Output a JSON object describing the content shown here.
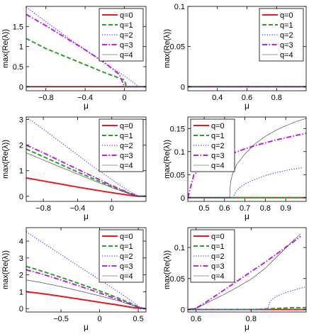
{
  "figure": {
    "legend_entries": [
      "q=0",
      "q=1",
      "q=2",
      "q=3",
      "q=4"
    ]
  },
  "styles": {
    "q=0": {
      "color": "#e41a1c",
      "dash": "",
      "width": 2.0
    },
    "q=1": {
      "color": "#2ca02c",
      "dash": "6,3",
      "width": 2.0
    },
    "q=2": {
      "color": "#3b3bff",
      "dash": "1.2,2.2",
      "width": 1.2
    },
    "q=3": {
      "color": "#c020e0",
      "dash": "7,2.5,1.5,2.5",
      "width": 2.0
    },
    "q=4": {
      "color": "#333333",
      "dash": "",
      "width": 0.6
    }
  },
  "chart_data": [
    {
      "type": "line",
      "title": "",
      "xlabel": "μ",
      "ylabel": "max(Re(λ))",
      "xlim": [
        -1.0,
        0.22
      ],
      "ylim": [
        -0.1,
        2.0
      ],
      "xticks": [
        -0.8,
        -0.4,
        0
      ],
      "xtick_labels": [
        "−0.8",
        "−0.4",
        "0"
      ],
      "yticks": [
        0,
        0.5,
        1,
        1.5
      ],
      "ytick_labels": [
        "0",
        "0.5",
        "1",
        "1.5"
      ],
      "grid": false,
      "legend": "top-right",
      "series": [
        {
          "name": "q=0",
          "x": [
            -1.0,
            0.22
          ],
          "y": [
            0.0,
            0.0
          ]
        },
        {
          "name": "q=1",
          "x": [
            -1.0,
            -0.8,
            -0.6,
            -0.4,
            -0.2,
            0.0,
            0.02,
            0.22
          ],
          "y": [
            1.2,
            0.95,
            0.75,
            0.55,
            0.35,
            0.17,
            0.0,
            0.0
          ]
        },
        {
          "name": "q=2",
          "x": [
            -1.0,
            -0.8,
            -0.6,
            -0.4,
            -0.2,
            0.0,
            0.15,
            0.22
          ],
          "y": [
            1.98,
            1.62,
            1.26,
            0.92,
            0.58,
            0.27,
            0.0,
            0.0
          ]
        },
        {
          "name": "q=3",
          "x": [
            -1.0,
            -0.8,
            -0.6,
            -0.4,
            -0.2,
            -0.05,
            0.0,
            0.22
          ],
          "y": [
            1.8,
            1.52,
            1.22,
            0.92,
            0.6,
            0.3,
            0.0,
            0.0
          ]
        },
        {
          "name": "q=4",
          "x": [
            -1.0,
            -0.6,
            -0.2,
            0.0,
            0.22
          ],
          "y": [
            0.0,
            0.0,
            0.0,
            0.0,
            0.0
          ]
        }
      ]
    },
    {
      "type": "line",
      "title": "",
      "xlabel": "μ",
      "ylabel": "max(Re(λ))",
      "xlim": [
        0.2,
        1.0
      ],
      "ylim": [
        -0.005,
        0.1
      ],
      "xticks": [
        0.4,
        0.6,
        0.8
      ],
      "xtick_labels": [
        "0.4",
        "0.6",
        "0.8"
      ],
      "yticks": [
        0,
        0.05,
        0.1
      ],
      "ytick_labels": [
        "0",
        "0.05",
        "0.1"
      ],
      "grid": false,
      "legend": "top-right",
      "series": [
        {
          "name": "q=0",
          "x": [
            0.2,
            1.0
          ],
          "y": [
            0.0,
            0.0
          ]
        },
        {
          "name": "q=1",
          "x": [
            0.2,
            1.0
          ],
          "y": [
            0.0,
            0.0
          ]
        },
        {
          "name": "q=2",
          "x": [
            0.2,
            1.0
          ],
          "y": [
            0.0,
            0.0
          ]
        },
        {
          "name": "q=3",
          "x": [
            0.2,
            1.0
          ],
          "y": [
            0.0,
            0.0
          ]
        },
        {
          "name": "q=4",
          "x": [
            0.2,
            1.0
          ],
          "y": [
            0.0,
            0.0
          ]
        }
      ]
    },
    {
      "type": "line",
      "title": "",
      "xlabel": "μ",
      "ylabel": "max(Re(λ))",
      "xlim": [
        -1.0,
        0.4
      ],
      "ylim": [
        -0.2,
        3.1
      ],
      "xticks": [
        -0.8,
        -0.4,
        0
      ],
      "xtick_labels": [
        "−0.8",
        "−0.4",
        "0"
      ],
      "yticks": [
        0,
        1,
        2,
        3
      ],
      "ytick_labels": [
        "0",
        "1",
        "2",
        "3"
      ],
      "grid": false,
      "legend": "top-right",
      "series": [
        {
          "name": "q=0",
          "x": [
            -1.0,
            -0.8,
            -0.6,
            -0.4,
            -0.2,
            0.0,
            0.2,
            0.3,
            0.4
          ],
          "y": [
            0.72,
            0.6,
            0.48,
            0.36,
            0.25,
            0.14,
            0.04,
            0.0,
            0.0
          ]
        },
        {
          "name": "q=1",
          "x": [
            -1.0,
            -0.8,
            -0.6,
            -0.4,
            -0.2,
            0.0,
            0.2,
            0.3,
            0.4
          ],
          "y": [
            1.85,
            1.55,
            1.25,
            0.95,
            0.66,
            0.38,
            0.12,
            0.0,
            0.0
          ]
        },
        {
          "name": "q=2",
          "x": [
            -1.0,
            -0.8,
            -0.6,
            -0.4,
            -0.2,
            0.0,
            0.2,
            0.32,
            0.4
          ],
          "y": [
            3.1,
            2.62,
            2.12,
            1.62,
            1.12,
            0.65,
            0.2,
            0.0,
            0.0
          ]
        },
        {
          "name": "q=3",
          "x": [
            -1.0,
            -0.8,
            -0.6,
            -0.4,
            -0.2,
            0.0,
            0.2,
            0.32,
            0.4
          ],
          "y": [
            2.0,
            1.7,
            1.38,
            1.06,
            0.74,
            0.42,
            0.13,
            0.0,
            0.0
          ]
        },
        {
          "name": "q=4",
          "x": [
            -1.0,
            -0.8,
            -0.6,
            -0.4,
            -0.2,
            0.0,
            0.2,
            0.3,
            0.4
          ],
          "y": [
            1.7,
            1.42,
            1.14,
            0.87,
            0.6,
            0.34,
            0.1,
            0.0,
            0.0
          ]
        }
      ]
    },
    {
      "type": "line",
      "title": "",
      "xlabel": "μ",
      "ylabel": "max(Re(λ))",
      "xlim": [
        0.42,
        1.0
      ],
      "ylim": [
        -0.008,
        0.175
      ],
      "xticks": [
        0.5,
        0.6,
        0.7,
        0.8,
        0.9
      ],
      "xtick_labels": [
        "0.5",
        "0.6",
        "0.7",
        "0.8",
        "0.9"
      ],
      "yticks": [
        0,
        0.05,
        0.1,
        0.15
      ],
      "ytick_labels": [
        "0",
        "0.05",
        "0.1",
        "0.15"
      ],
      "grid": false,
      "legend": "top-left",
      "series": [
        {
          "name": "q=0",
          "x": [
            0.42,
            1.0
          ],
          "y": [
            0.0,
            0.0
          ]
        },
        {
          "name": "q=1",
          "x": [
            0.42,
            1.0
          ],
          "y": [
            0.0,
            0.0
          ]
        },
        {
          "name": "q=2",
          "x": [
            0.42,
            0.645,
            0.65,
            0.66,
            0.68,
            0.7,
            0.75,
            0.8,
            0.85,
            0.9,
            0.95,
            0.98
          ],
          "y": [
            0.0,
            0.0,
            0.008,
            0.016,
            0.024,
            0.03,
            0.04,
            0.048,
            0.054,
            0.059,
            0.063,
            0.065
          ]
        },
        {
          "name": "q=3",
          "x": [
            0.42,
            0.45,
            0.5,
            0.55,
            0.6,
            0.65,
            0.7,
            0.75,
            0.8,
            0.85,
            0.9,
            0.95,
            1.0
          ],
          "y": [
            0.0,
            0.05,
            0.067,
            0.079,
            0.089,
            0.098,
            0.106,
            0.113,
            0.119,
            0.125,
            0.13,
            0.135,
            0.14
          ]
        },
        {
          "name": "q=4",
          "x": [
            0.42,
            0.625,
            0.627,
            0.63,
            0.64,
            0.66,
            0.7,
            0.75,
            0.8,
            0.85,
            0.9,
            0.95,
            1.0
          ],
          "y": [
            0.0,
            0.0,
            0.02,
            0.035,
            0.052,
            0.072,
            0.095,
            0.117,
            0.133,
            0.146,
            0.156,
            0.165,
            0.172
          ]
        }
      ]
    },
    {
      "type": "line",
      "title": "",
      "xlabel": "μ",
      "ylabel": "max(Re(λ))",
      "xlim": [
        -0.95,
        0.6
      ],
      "ylim": [
        -0.2,
        4.8
      ],
      "xticks": [
        -0.5,
        0,
        0.5
      ],
      "xtick_labels": [
        "−0.5",
        "0",
        "0.5"
      ],
      "yticks": [
        0,
        1,
        2,
        3,
        4
      ],
      "ytick_labels": [
        "0",
        "1",
        "2",
        "3",
        "4"
      ],
      "grid": false,
      "legend": "top-right",
      "series": [
        {
          "name": "q=0",
          "x": [
            -0.95,
            -0.8,
            -0.6,
            -0.4,
            -0.2,
            0.0,
            0.2,
            0.4,
            0.5,
            0.6
          ],
          "y": [
            1.0,
            0.92,
            0.8,
            0.66,
            0.52,
            0.38,
            0.24,
            0.09,
            0.02,
            0.0
          ]
        },
        {
          "name": "q=1",
          "x": [
            -0.95,
            -0.8,
            -0.6,
            -0.4,
            -0.2,
            0.0,
            0.2,
            0.4,
            0.52,
            0.6
          ],
          "y": [
            2.5,
            2.3,
            2.0,
            1.7,
            1.38,
            1.05,
            0.7,
            0.32,
            0.05,
            0.0
          ]
        },
        {
          "name": "q=2",
          "x": [
            -0.95,
            -0.8,
            -0.6,
            -0.4,
            -0.2,
            0.0,
            0.2,
            0.4,
            0.52,
            0.6
          ],
          "y": [
            4.55,
            4.1,
            3.5,
            2.9,
            2.3,
            1.72,
            1.12,
            0.5,
            0.1,
            0.0
          ]
        },
        {
          "name": "q=3",
          "x": [
            -0.95,
            -0.8,
            -0.6,
            -0.4,
            -0.2,
            0.0,
            0.2,
            0.4,
            0.52,
            0.6
          ],
          "y": [
            2.3,
            2.12,
            1.84,
            1.55,
            1.24,
            0.93,
            0.6,
            0.26,
            0.04,
            0.0
          ]
        },
        {
          "name": "q=4",
          "x": [
            -0.95,
            -0.8,
            -0.6,
            -0.4,
            -0.2,
            0.0,
            0.2,
            0.4,
            0.52,
            0.6
          ],
          "y": [
            1.7,
            1.58,
            1.4,
            1.2,
            0.98,
            0.76,
            0.52,
            0.24,
            0.04,
            0.0
          ]
        }
      ]
    },
    {
      "type": "line",
      "title": "",
      "xlabel": "μ",
      "ylabel": "max(Re(λ))",
      "xlim": [
        0.57,
        1.0
      ],
      "ylim": [
        -0.004,
        0.132
      ],
      "xticks": [
        0.6,
        0.8
      ],
      "xtick_labels": [
        "0.6",
        "0.8"
      ],
      "yticks": [
        0,
        0.05,
        0.1
      ],
      "ytick_labels": [
        "0",
        "0.05",
        "0.1"
      ],
      "grid": false,
      "legend": "top-left",
      "series": [
        {
          "name": "q=0",
          "x": [
            0.57,
            1.0
          ],
          "y": [
            0.0,
            0.0
          ]
        },
        {
          "name": "q=1",
          "x": [
            0.57,
            0.82,
            0.85,
            0.9,
            0.95,
            1.0
          ],
          "y": [
            0.0,
            0.0,
            0.001,
            0.002,
            0.003,
            0.003
          ]
        },
        {
          "name": "q=2",
          "x": [
            0.57,
            0.86,
            0.865,
            0.87,
            0.88,
            0.9,
            0.93,
            0.96,
            1.0
          ],
          "y": [
            0.0,
            0.0,
            0.008,
            0.013,
            0.018,
            0.023,
            0.028,
            0.032,
            0.037
          ]
        },
        {
          "name": "q=3",
          "x": [
            0.57,
            0.6,
            0.65,
            0.7,
            0.75,
            0.8,
            0.85,
            0.9,
            0.95,
            0.98
          ],
          "y": [
            0.0,
            0.002,
            0.016,
            0.031,
            0.046,
            0.061,
            0.076,
            0.092,
            0.108,
            0.118
          ]
        },
        {
          "name": "q=4",
          "x": [
            0.57,
            0.6,
            0.65,
            0.7,
            0.75,
            0.8,
            0.85,
            0.9,
            0.95,
            0.98
          ],
          "y": [
            0.0,
            0.002,
            0.013,
            0.024,
            0.036,
            0.049,
            0.066,
            0.088,
            0.11,
            0.122
          ]
        }
      ]
    }
  ]
}
